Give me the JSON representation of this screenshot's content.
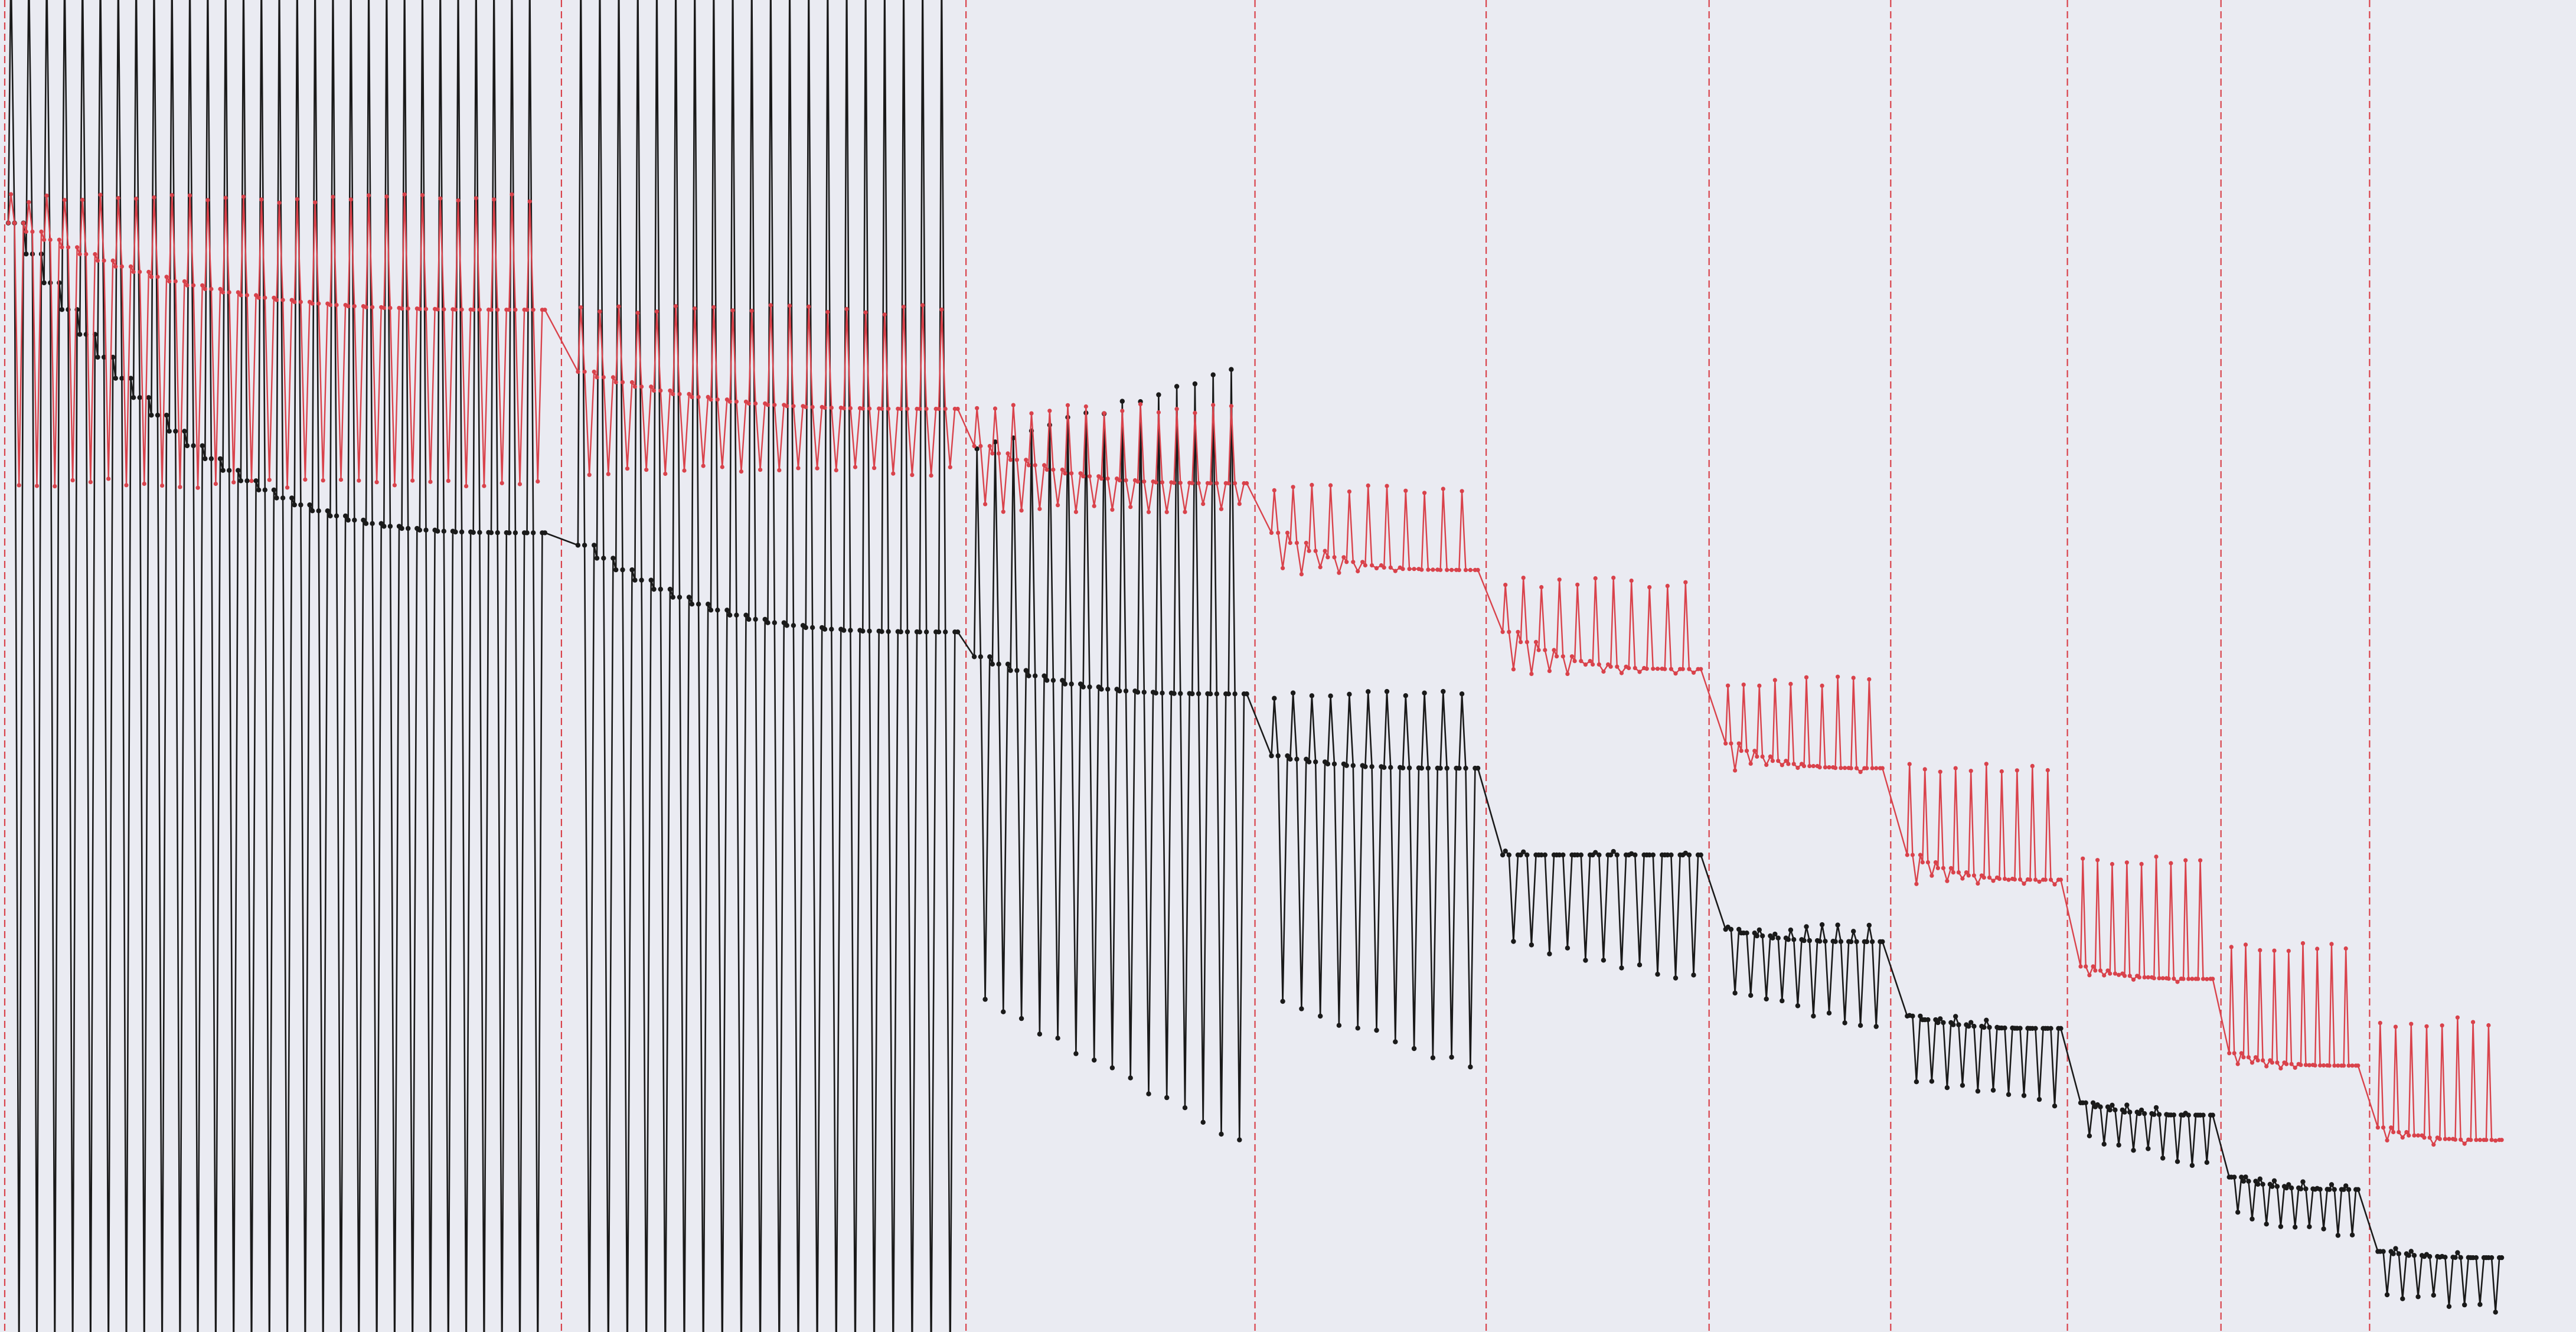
{
  "chart_data": {
    "type": "line",
    "title": "",
    "xlabel": "",
    "ylabel": "",
    "axes_visible": false,
    "grid": false,
    "legend": "none",
    "xlim": [
      0,
      156
    ],
    "ylim": [
      -57.5,
      50
    ],
    "colors": {
      "background": "#eaebf2",
      "series_a": "#1a1a1a",
      "series_b": "#d9424b",
      "dividers": "#d9424b"
    },
    "dividers_x": [
      0,
      34,
      58.5,
      76,
      90,
      103.5,
      114.5,
      125.2,
      134.5,
      143.5
    ],
    "series": [
      {
        "style": "black-dots-line",
        "segments": [
          {
            "x_start": 0.5,
            "x_end": 33,
            "count": 30,
            "baseline": [
              32,
              7
            ],
            "peak": [
              120,
              120
            ],
            "trough": [
              -120,
              -120
            ],
            "seed": 1
          },
          {
            "x_start": 35,
            "x_end": 58,
            "count": 20,
            "baseline": [
              6,
              -1
            ],
            "peak": [
              120,
              120
            ],
            "trough": [
              -120,
              -120
            ],
            "seed": 2
          },
          {
            "x_start": 59,
            "x_end": 75.5,
            "count": 15,
            "baseline": [
              -3,
              -6
            ],
            "peak": [
              14,
              20
            ],
            "trough": [
              -31,
              -42
            ],
            "seed": 3
          },
          {
            "x_start": 77,
            "x_end": 89.5,
            "count": 11,
            "baseline": [
              -11,
              -12
            ],
            "peak": [
              -6,
              -6
            ],
            "trough": [
              -31,
              -36
            ],
            "seed": 4
          },
          {
            "x_start": 91,
            "x_end": 103,
            "count": 11,
            "baseline": [
              -19,
              -19
            ],
            "peak": [
              -19,
              -19
            ],
            "trough": [
              -26,
              -29
            ],
            "seed": 5
          },
          {
            "x_start": 104.5,
            "x_end": 114,
            "count": 10,
            "baseline": [
              -25,
              -26
            ],
            "peak": [
              -25,
              -25
            ],
            "trough": [
              -30,
              -33
            ],
            "seed": 6
          },
          {
            "x_start": 115.5,
            "x_end": 124.8,
            "count": 10,
            "baseline": [
              -32,
              -33
            ],
            "peak": [
              -32,
              -33
            ],
            "trough": [
              -37,
              -39
            ],
            "seed": 7
          },
          {
            "x_start": 126,
            "x_end": 134,
            "count": 9,
            "baseline": [
              -39,
              -40
            ],
            "peak": [
              -39,
              -40
            ],
            "trough": [
              -42,
              -44
            ],
            "seed": 8
          },
          {
            "x_start": 135,
            "x_end": 142.8,
            "count": 9,
            "baseline": [
              -45,
              -46
            ],
            "peak": [
              -45,
              -46
            ],
            "trough": [
              -48,
              -50
            ],
            "seed": 9
          },
          {
            "x_start": 144,
            "x_end": 151.5,
            "count": 8,
            "baseline": [
              -51,
              -51.5
            ],
            "peak": [
              -51,
              -51.5
            ],
            "trough": [
              -54.5,
              -55.5
            ],
            "seed": 10
          }
        ]
      },
      {
        "style": "red-dots-line",
        "segments": [
          {
            "x_start": 0.5,
            "x_end": 33,
            "count": 30,
            "baseline": [
              32,
              25
            ],
            "peak": [
              34,
              34
            ],
            "trough": [
              11,
              11
            ],
            "seed": 11
          },
          {
            "x_start": 35,
            "x_end": 58,
            "count": 20,
            "baseline": [
              20,
              17
            ],
            "peak": [
              25,
              25
            ],
            "trough": [
              12,
              12
            ],
            "seed": 12
          },
          {
            "x_start": 59,
            "x_end": 75.5,
            "count": 15,
            "baseline": [
              14,
              11
            ],
            "peak": [
              17,
              17
            ],
            "trough": [
              9,
              9
            ],
            "seed": 13
          },
          {
            "x_start": 77,
            "x_end": 89.5,
            "count": 11,
            "baseline": [
              7,
              4
            ],
            "peak": [
              10.5,
              10.5
            ],
            "trough": [
              4,
              4
            ],
            "seed": 14
          },
          {
            "x_start": 91,
            "x_end": 103,
            "count": 11,
            "baseline": [
              -1,
              -4
            ],
            "peak": [
              3,
              3
            ],
            "trough": [
              -4,
              -4
            ],
            "seed": 15
          },
          {
            "x_start": 104.5,
            "x_end": 114,
            "count": 10,
            "baseline": [
              -10,
              -12
            ],
            "peak": [
              -5,
              -5
            ],
            "trough": [
              -12,
              -12
            ],
            "seed": 16
          },
          {
            "x_start": 115.5,
            "x_end": 124.8,
            "count": 10,
            "baseline": [
              -19,
              -21
            ],
            "peak": [
              -12,
              -12
            ],
            "trough": [
              -21,
              -21
            ],
            "seed": 17
          },
          {
            "x_start": 126,
            "x_end": 134,
            "count": 9,
            "baseline": [
              -28,
              -29
            ],
            "peak": [
              -19.5,
              -19.5
            ],
            "trough": [
              -29,
              -29
            ],
            "seed": 18
          },
          {
            "x_start": 135,
            "x_end": 142.8,
            "count": 9,
            "baseline": [
              -35,
              -36
            ],
            "peak": [
              -26.5,
              -26.5
            ],
            "trough": [
              -36,
              -36
            ],
            "seed": 19
          },
          {
            "x_start": 144,
            "x_end": 151.5,
            "count": 8,
            "baseline": [
              -41,
              -42
            ],
            "peak": [
              -32.5,
              -32.5
            ],
            "trough": [
              -42,
              -42
            ],
            "seed": 20
          }
        ]
      }
    ]
  }
}
